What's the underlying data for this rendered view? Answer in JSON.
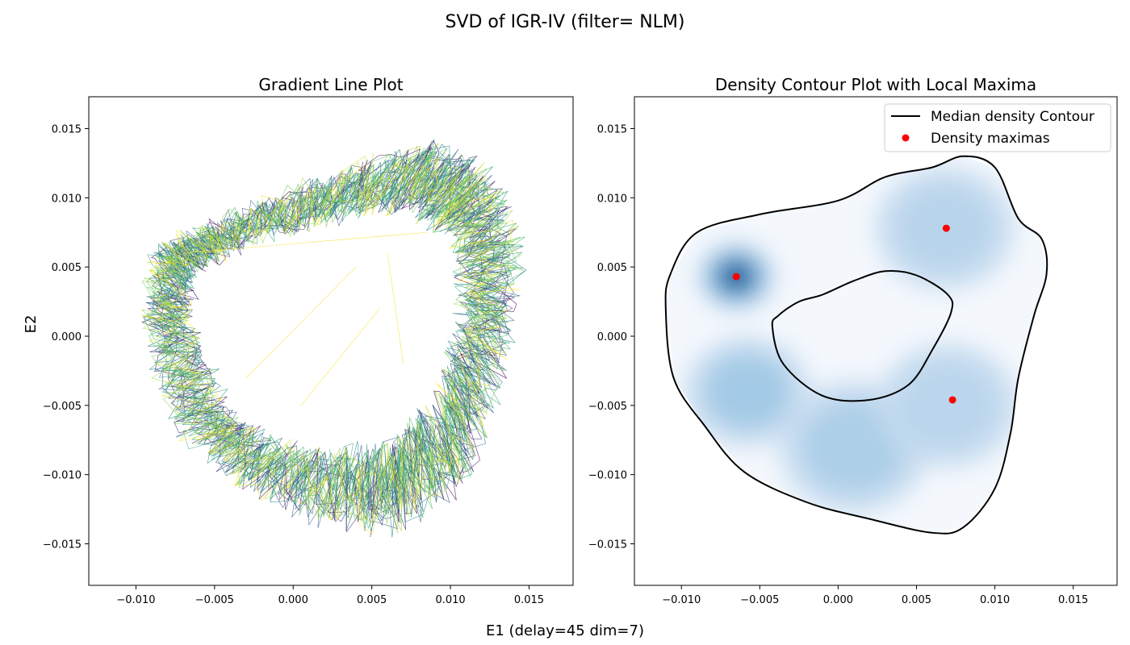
{
  "figure": {
    "suptitle": "SVD of IGR-IV (filter= NLM)",
    "xlabel": "E1 (delay=45 dim=7)",
    "ylabel": "E2"
  },
  "chart_data": [
    {
      "type": "line",
      "title": "Gradient Line Plot",
      "xlim": [
        -0.013,
        0.0178
      ],
      "ylim": [
        -0.018,
        0.0173
      ],
      "xticks": [
        -0.01,
        -0.005,
        0.0,
        0.005,
        0.01,
        0.015
      ],
      "xtick_labels": [
        "−0.010",
        "−0.005",
        "0.000",
        "0.005",
        "0.010",
        "0.015"
      ],
      "yticks": [
        0.015,
        0.01,
        0.005,
        0.0,
        -0.005,
        -0.01,
        -0.015
      ],
      "ytick_labels": [
        "0.015",
        "0.010",
        "0.005",
        "0.000",
        "−0.005",
        "−0.010",
        "−0.015"
      ],
      "colormap": "viridis",
      "ring_outer": [
        [
          -0.0098,
          0.0012
        ],
        [
          -0.009,
          0.0065
        ],
        [
          -0.006,
          0.008
        ],
        [
          -0.001,
          0.0102
        ],
        [
          0.004,
          0.0126
        ],
        [
          0.0095,
          0.0143
        ],
        [
          0.013,
          0.012
        ],
        [
          0.0148,
          0.006
        ],
        [
          0.0135,
          -0.003
        ],
        [
          0.011,
          -0.011
        ],
        [
          0.0065,
          -0.0145
        ],
        [
          0.002,
          -0.014
        ],
        [
          -0.0035,
          -0.011
        ],
        [
          -0.008,
          -0.006
        ],
        [
          -0.0098,
          0.0012
        ]
      ],
      "ring_inner": [
        [
          -0.0065,
          0.001
        ],
        [
          -0.006,
          0.0045
        ],
        [
          -0.003,
          0.0065
        ],
        [
          0.002,
          0.008
        ],
        [
          0.007,
          0.009
        ],
        [
          0.01,
          0.007
        ],
        [
          0.0105,
          0.002
        ],
        [
          0.009,
          -0.004
        ],
        [
          0.006,
          -0.0075
        ],
        [
          0.001,
          -0.008
        ],
        [
          -0.0035,
          -0.006
        ],
        [
          -0.0065,
          0.001
        ]
      ],
      "stray_lines": [
        [
          [
            -0.003,
            -0.003
          ],
          [
            0.004,
            0.005
          ]
        ],
        [
          [
            0.0005,
            -0.005
          ],
          [
            0.0055,
            0.002
          ]
        ],
        [
          [
            -0.007,
            0.006
          ],
          [
            0.0085,
            0.0075
          ]
        ],
        [
          [
            0.006,
            0.006
          ],
          [
            0.007,
            -0.002
          ]
        ]
      ]
    },
    {
      "type": "contour",
      "title": "Density Contour Plot with Local Maxima",
      "xlim": [
        -0.013,
        0.0178
      ],
      "ylim": [
        -0.018,
        0.0173
      ],
      "xticks": [
        -0.01,
        -0.005,
        0.0,
        0.005,
        0.01,
        0.015
      ],
      "xtick_labels": [
        "−0.010",
        "−0.005",
        "0.000",
        "0.005",
        "0.010",
        "0.015"
      ],
      "yticks": [
        0.015,
        0.01,
        0.005,
        0.0,
        -0.005,
        -0.01,
        -0.015
      ],
      "ytick_labels": [
        "0.015",
        "0.010",
        "0.005",
        "0.000",
        "−0.005",
        "−0.010",
        "−0.015"
      ],
      "colormap": "Blues",
      "median_contour_outer": [
        [
          -0.011,
          0.002
        ],
        [
          -0.0107,
          0.0045
        ],
        [
          -0.009,
          0.0075
        ],
        [
          -0.005,
          0.0088
        ],
        [
          0.0,
          0.0098
        ],
        [
          0.003,
          0.0115
        ],
        [
          0.006,
          0.0122
        ],
        [
          0.008,
          0.013
        ],
        [
          0.01,
          0.0122
        ],
        [
          0.0115,
          0.0085
        ],
        [
          0.013,
          0.007
        ],
        [
          0.0133,
          0.0045
        ],
        [
          0.0125,
          0.0015
        ],
        [
          0.0115,
          -0.003
        ],
        [
          0.011,
          -0.007
        ],
        [
          0.01,
          -0.011
        ],
        [
          0.008,
          -0.0138
        ],
        [
          0.006,
          -0.0142
        ],
        [
          0.002,
          -0.0132
        ],
        [
          -0.002,
          -0.012
        ],
        [
          -0.006,
          -0.0098
        ],
        [
          -0.0085,
          -0.0065
        ],
        [
          -0.0105,
          -0.003
        ],
        [
          -0.011,
          0.002
        ]
      ],
      "median_contour_inner": [
        [
          -0.0042,
          0.0007
        ],
        [
          -0.0038,
          0.0015
        ],
        [
          -0.0025,
          0.0025
        ],
        [
          -0.001,
          0.003
        ],
        [
          0.001,
          0.004
        ],
        [
          0.003,
          0.0047
        ],
        [
          0.005,
          0.0044
        ],
        [
          0.007,
          0.003
        ],
        [
          0.0072,
          0.0017
        ],
        [
          0.006,
          -0.001
        ],
        [
          0.0045,
          -0.0035
        ],
        [
          0.002,
          -0.0046
        ],
        [
          -0.001,
          -0.0043
        ],
        [
          -0.0035,
          -0.002
        ],
        [
          -0.0042,
          0.0007
        ]
      ],
      "density_peaks": [
        {
          "x": -0.0065,
          "y": 0.0043,
          "weight": 1.0,
          "spread": 0.0016
        },
        {
          "x": -0.0058,
          "y": -0.004,
          "weight": 0.3,
          "spread": 0.0025
        },
        {
          "x": 0.001,
          "y": -0.008,
          "weight": 0.22,
          "spread": 0.003
        },
        {
          "x": 0.0068,
          "y": 0.0078,
          "weight": 0.14,
          "spread": 0.0028
        },
        {
          "x": 0.007,
          "y": -0.005,
          "weight": 0.12,
          "spread": 0.0028
        }
      ],
      "maxima": [
        {
          "x": -0.0065,
          "y": 0.0043
        },
        {
          "x": 0.0069,
          "y": 0.0078
        },
        {
          "x": 0.0073,
          "y": -0.0046
        }
      ],
      "legend": {
        "location": "upper right",
        "entries": [
          {
            "label": "Median density Contour",
            "style": "line",
            "color": "#000000"
          },
          {
            "label": "Density maximas",
            "style": "marker",
            "color": "#ff0000"
          }
        ]
      }
    }
  ]
}
